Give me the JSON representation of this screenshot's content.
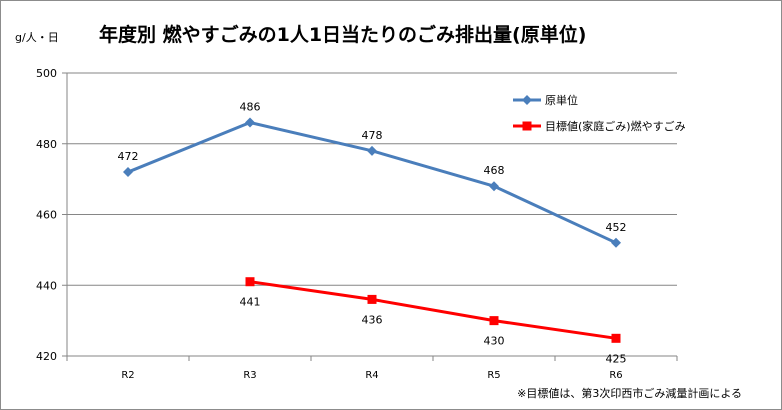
{
  "chart_data": {
    "type": "line",
    "title": "年度別 燃やすごみの1人1日当たりのごみ排出量(原単位)",
    "ylabel": "g/人・日",
    "categories": [
      "R2",
      "R3",
      "R4",
      "R5",
      "R6"
    ],
    "ylim": [
      420,
      500
    ],
    "yticks": [
      420,
      440,
      460,
      480,
      500
    ],
    "grid": true,
    "legend_position": "top-right",
    "series": [
      {
        "name": "原単位",
        "values": [
          472,
          486,
          478,
          468,
          452
        ],
        "labels": [
          "472",
          "486",
          "478",
          "468",
          "452"
        ],
        "color": "#4a7ebb",
        "marker": "diamond"
      },
      {
        "name": "目標値(家庭ごみ)燃やすごみ",
        "values": [
          null,
          441,
          436,
          430,
          425
        ],
        "labels": [
          "",
          "441",
          "436",
          "430",
          "425"
        ],
        "color": "#ff0000",
        "marker": "square"
      }
    ],
    "note": "※目標値は、第3次印西市ごみ減量計画による"
  }
}
